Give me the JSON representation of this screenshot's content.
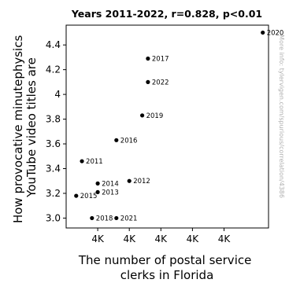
{
  "chart_data": {
    "type": "scatter",
    "title": "Years 2011-2022, r=0.828, p<0.01",
    "xlabel_lines": [
      "The number of postal service",
      "clerks in Florida"
    ],
    "ylabel_lines": [
      "How provocative minutephysics",
      "YouTube video titles are"
    ],
    "watermark": "More info: tylervigen.com/spurious/correlation/4386",
    "grid": false,
    "xlim": [
      3470,
      4175
    ],
    "ylim": [
      2.92,
      4.56
    ],
    "x_ticks": [
      {
        "value": 3580,
        "label": "4K"
      },
      {
        "value": 3690,
        "label": "4K"
      },
      {
        "value": 3800,
        "label": "4K"
      },
      {
        "value": 3910,
        "label": "4K"
      },
      {
        "value": 4020,
        "label": "4K"
      }
    ],
    "y_ticks": [
      {
        "value": 3.0,
        "label": "3.0"
      },
      {
        "value": 3.2,
        "label": "3.2"
      },
      {
        "value": 3.4,
        "label": "3.4"
      },
      {
        "value": 3.6,
        "label": "3.6"
      },
      {
        "value": 3.8,
        "label": "3.8"
      },
      {
        "value": 4.0,
        "label": "4"
      },
      {
        "value": 4.2,
        "label": "4.2"
      },
      {
        "value": 4.4,
        "label": "4.4"
      }
    ],
    "points": [
      {
        "label": "2011",
        "x": 3525,
        "y": 3.46
      },
      {
        "label": "2012",
        "x": 3690,
        "y": 3.3
      },
      {
        "label": "2013",
        "x": 3580,
        "y": 3.21
      },
      {
        "label": "2014",
        "x": 3580,
        "y": 3.28
      },
      {
        "label": "2015",
        "x": 3505,
        "y": 3.18
      },
      {
        "label": "2016",
        "x": 3645,
        "y": 3.63
      },
      {
        "label": "2017",
        "x": 3755,
        "y": 4.29
      },
      {
        "label": "2018",
        "x": 3560,
        "y": 3.0
      },
      {
        "label": "2019",
        "x": 3735,
        "y": 3.83
      },
      {
        "label": "2020",
        "x": 4155,
        "y": 4.5
      },
      {
        "label": "2021",
        "x": 3645,
        "y": 3.0
      },
      {
        "label": "2022",
        "x": 3755,
        "y": 4.1
      }
    ],
    "marker_color": "#000000"
  }
}
